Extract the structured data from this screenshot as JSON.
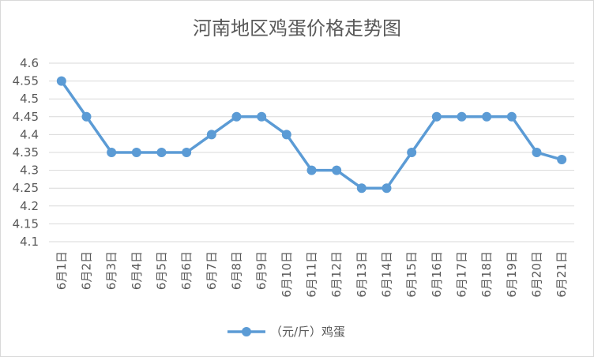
{
  "chart_data": {
    "type": "line",
    "title": "河南地区鸡蛋价格走势图",
    "categories": [
      "6月1日",
      "6月2日",
      "6月3日",
      "6月4日",
      "6月5日",
      "6月6日",
      "6月7日",
      "6月8日",
      "6月9日",
      "6月10日",
      "6月11日",
      "6月12日",
      "6月13日",
      "6月14日",
      "6月15日",
      "6月16日",
      "6月17日",
      "6月18日",
      "6月19日",
      "6月20日",
      "6月21日"
    ],
    "series": [
      {
        "name": "（元/斤）鸡蛋",
        "color": "#5b9bd5",
        "values": [
          4.55,
          4.45,
          4.35,
          4.35,
          4.35,
          4.35,
          4.4,
          4.45,
          4.45,
          4.4,
          4.3,
          4.3,
          4.25,
          4.25,
          4.35,
          4.45,
          4.45,
          4.45,
          4.45,
          4.35,
          4.33
        ]
      }
    ],
    "ylim": [
      4.1,
      4.6
    ],
    "yticks": [
      "4.1",
      "4.15",
      "4.2",
      "4.25",
      "4.3",
      "4.35",
      "4.4",
      "4.45",
      "4.5",
      "4.55",
      "4.6"
    ],
    "grid": true,
    "legend": "bottom"
  }
}
